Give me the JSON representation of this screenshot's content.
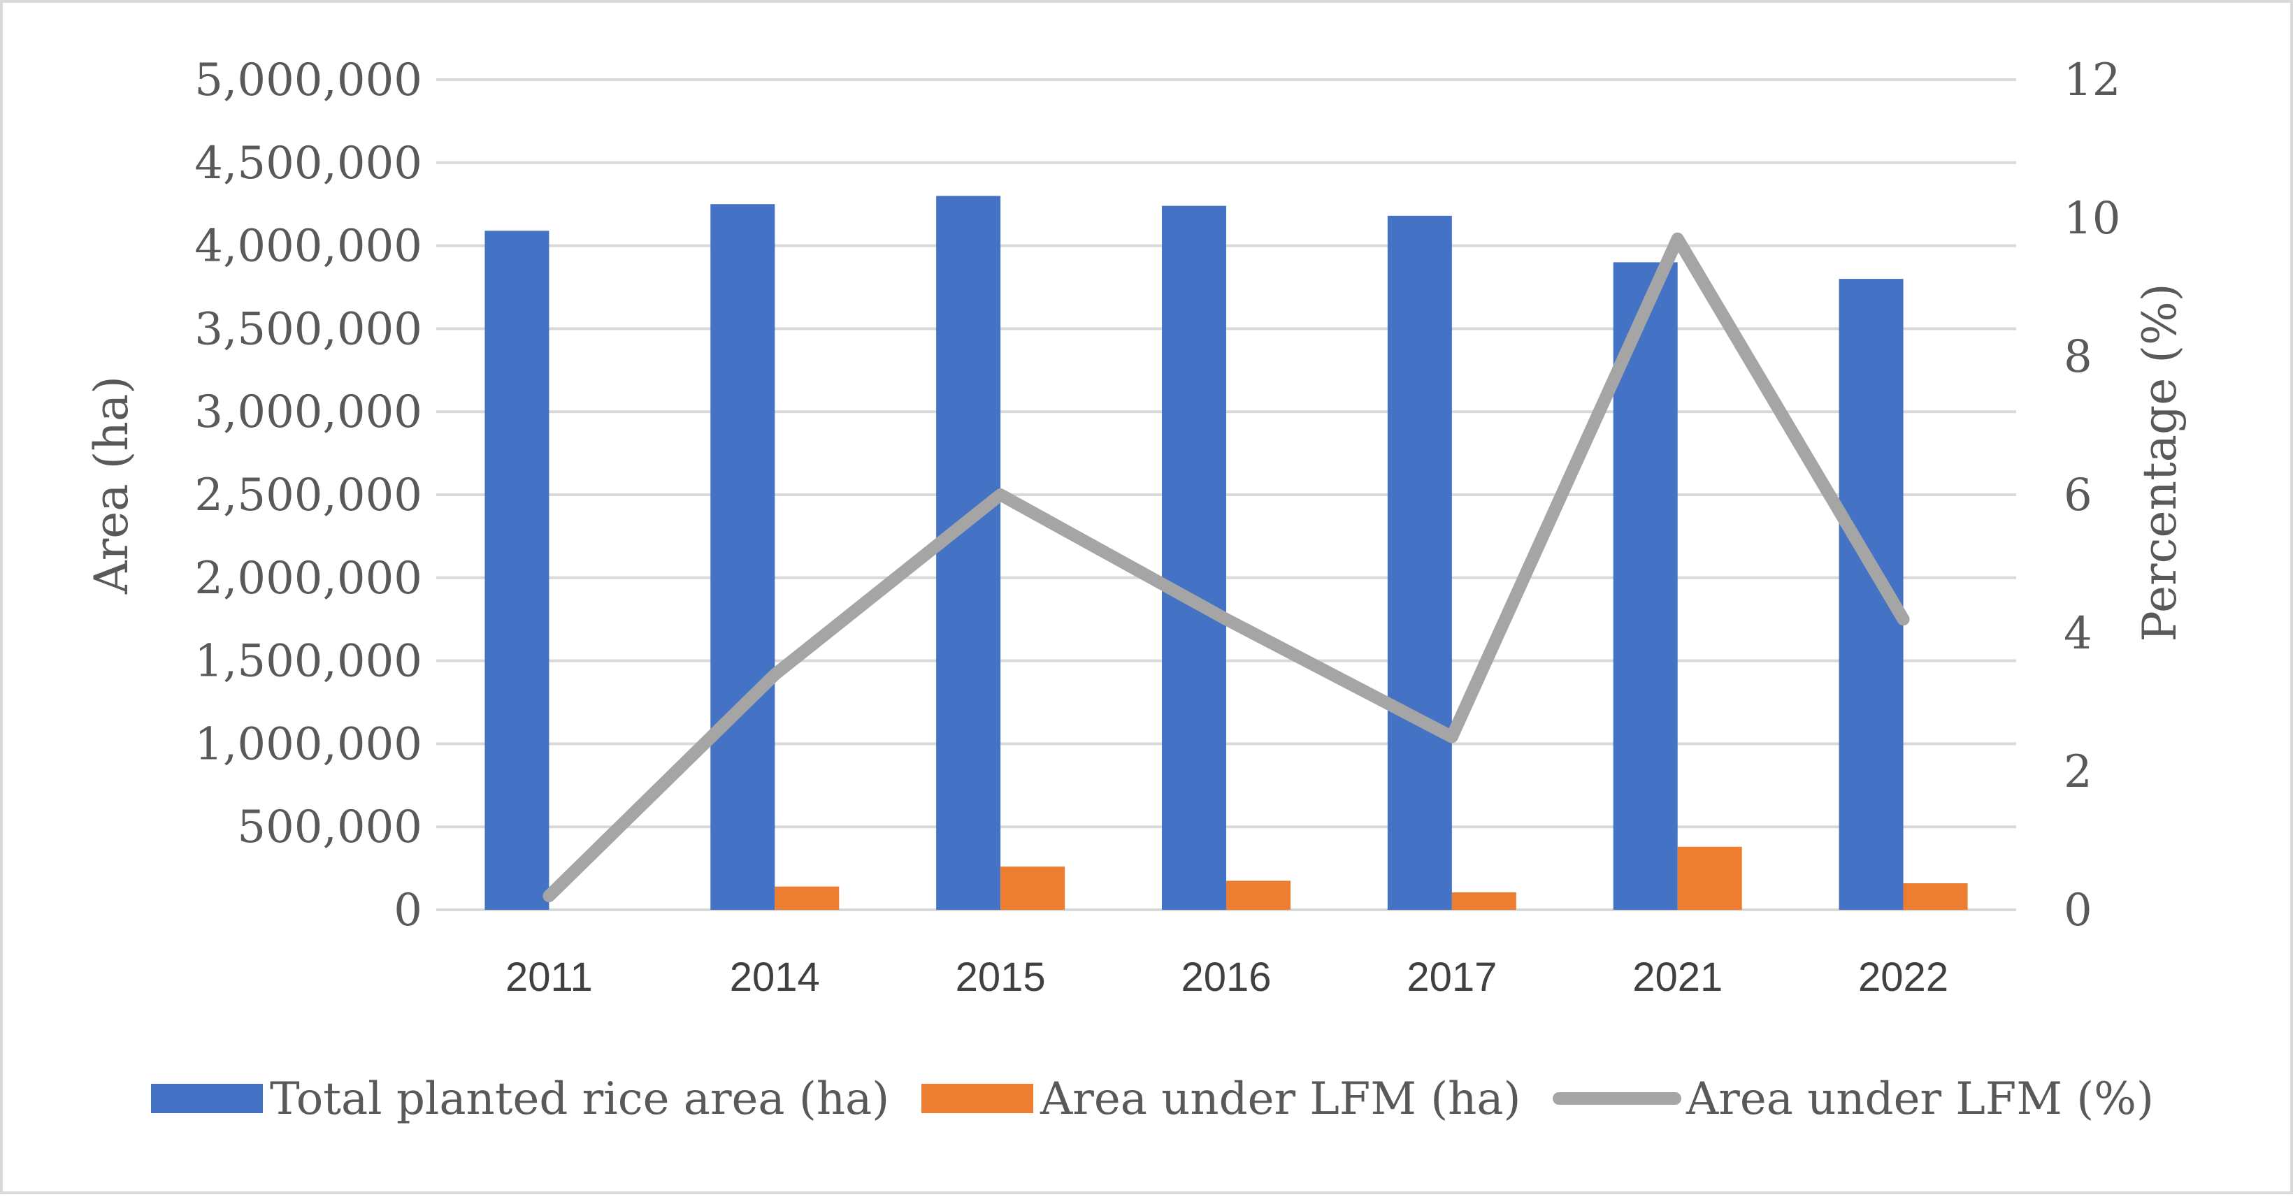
{
  "chart_data": {
    "type": "bar",
    "categories": [
      "2011",
      "2014",
      "2015",
      "2016",
      "2017",
      "2021",
      "2022"
    ],
    "series": [
      {
        "name": "Total planted rice area (ha)",
        "kind": "bar",
        "axis": "left",
        "color": "#4472C4",
        "values": [
          4090000,
          4250000,
          4300000,
          4240000,
          4180000,
          3900000,
          3800000
        ]
      },
      {
        "name": "Area under LFM (ha)",
        "kind": "bar",
        "axis": "left",
        "color": "#ED7D31",
        "values": [
          0,
          140000,
          260000,
          175000,
          105000,
          380000,
          160000
        ]
      },
      {
        "name": "Area under LFM (%)",
        "kind": "line",
        "axis": "right",
        "color": "#A5A5A5",
        "values": [
          0.2,
          3.4,
          6.0,
          4.2,
          2.5,
          9.7,
          4.2
        ]
      }
    ],
    "ylabel": "Area (ha)",
    "y2label": "Percentage (%)",
    "ylim": [
      0,
      5000000
    ],
    "y2lim": [
      0,
      12
    ],
    "yticks": [
      "0",
      "500,000",
      "1,000,000",
      "1,500,000",
      "2,000,000",
      "2,500,000",
      "3,000,000",
      "3,500,000",
      "4,000,000",
      "4,500,000",
      "5,000,000"
    ],
    "y2ticks": [
      "0",
      "2",
      "4",
      "6",
      "8",
      "10",
      "12"
    ],
    "grid": true,
    "legend_position": "bottom",
    "gridColor": "#d9d9d9"
  }
}
